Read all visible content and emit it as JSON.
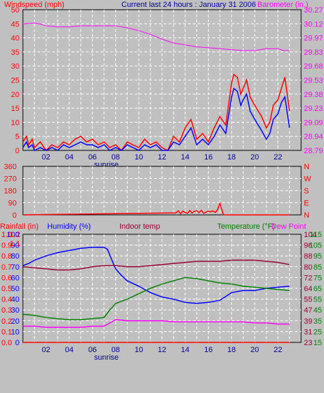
{
  "header": {
    "left_label": "Windspeed (mph)",
    "center_label": "Current last 24 hours : January 31 2006",
    "right_label": "Barometer (in.)"
  },
  "colors": {
    "bg": "#c0c0c0",
    "grid": "#ffffff",
    "red": "#ff0000",
    "darkred": "#990033",
    "blue": "#0000ff",
    "magenta": "#ff00ff",
    "green": "#008000",
    "navy": "#000099"
  },
  "chart_data": [
    {
      "id": "wind",
      "type": "line",
      "ylabel": "Windspeed (mph)",
      "y2label": "Barometer (in.)",
      "ylim": [
        0,
        50
      ],
      "y_ticks": [
        "0",
        "5",
        "10",
        "15",
        "20",
        "25",
        "30",
        "35",
        "40",
        "45",
        "50"
      ],
      "y2lim": [
        28.79,
        30.27
      ],
      "y2_ticks": [
        "28.79",
        "28.94",
        "29.09",
        "29.23",
        "29.38",
        "29.53",
        "29.68",
        "29.83",
        "29.97",
        "30.12",
        "30.27"
      ],
      "x_ticks": [
        "02",
        "04",
        "06",
        "08",
        "10",
        "12",
        "14",
        "16",
        "18",
        "20",
        "22"
      ],
      "x_annotation": "sunrise",
      "x_annotation_hour": 7.2,
      "series": [
        {
          "role": "gust",
          "color": "#ff0000",
          "x": [
            0,
            0.3,
            0.5,
            0.8,
            1,
            1.5,
            2,
            2.5,
            3,
            3.5,
            4,
            4.5,
            5,
            5.5,
            6,
            6.5,
            7,
            7.5,
            8,
            8.5,
            9,
            9.5,
            10,
            10.5,
            11,
            11.5,
            12,
            12.5,
            13,
            13.5,
            14,
            14.5,
            15,
            15.5,
            16,
            16.5,
            17,
            17.5,
            18,
            18.2,
            18.5,
            18.8,
            19,
            19.3,
            19.6,
            20,
            20.3,
            20.6,
            21,
            21.3,
            21.6,
            22,
            22.3,
            22.6,
            23
          ],
          "y": [
            3,
            5,
            2,
            4,
            1,
            3,
            0,
            2,
            1,
            3,
            2,
            4,
            5,
            3,
            4,
            2,
            3,
            1,
            2,
            0,
            3,
            2,
            1,
            4,
            2,
            3,
            1,
            0,
            5,
            3,
            8,
            11,
            4,
            6,
            3,
            8,
            12,
            9,
            24,
            27,
            26,
            20,
            22,
            25,
            19,
            16,
            14,
            12,
            8,
            10,
            16,
            18,
            22,
            26,
            14
          ]
        },
        {
          "role": "avg",
          "color": "#0000ff",
          "x": [
            0,
            0.3,
            0.5,
            0.8,
            1,
            1.5,
            2,
            2.5,
            3,
            3.5,
            4,
            4.5,
            5,
            5.5,
            6,
            6.5,
            7,
            7.5,
            8,
            8.5,
            9,
            9.5,
            10,
            10.5,
            11,
            11.5,
            12,
            12.5,
            13,
            13.5,
            14,
            14.5,
            15,
            15.5,
            16,
            16.5,
            17,
            17.5,
            18,
            18.2,
            18.5,
            18.8,
            19,
            19.3,
            19.6,
            20,
            20.3,
            20.6,
            21,
            21.3,
            21.6,
            22,
            22.3,
            22.6,
            23
          ],
          "y": [
            1,
            3,
            1,
            2,
            0,
            1,
            0,
            1,
            0,
            2,
            1,
            2,
            3,
            2,
            2,
            1,
            2,
            0,
            1,
            0,
            2,
            1,
            0,
            2,
            1,
            2,
            0,
            0,
            3,
            2,
            5,
            8,
            2,
            4,
            2,
            5,
            9,
            6,
            19,
            22,
            21,
            16,
            18,
            20,
            14,
            11,
            9,
            7,
            4,
            6,
            11,
            13,
            17,
            19,
            8
          ]
        },
        {
          "role": "barometer",
          "color": "#ff00ff",
          "axis": "y2",
          "x": [
            0,
            1,
            1.5,
            2,
            3,
            4,
            5,
            6,
            7,
            8,
            9,
            10,
            11,
            12,
            13,
            14,
            15,
            16,
            17,
            18,
            19,
            20,
            21,
            22,
            22.5,
            23
          ],
          "y": [
            30.12,
            30.13,
            30.12,
            30.1,
            30.09,
            30.09,
            30.1,
            30.1,
            30.1,
            30.1,
            30.08,
            30.05,
            30.01,
            29.96,
            29.92,
            29.9,
            29.88,
            29.87,
            29.86,
            29.85,
            29.84,
            29.84,
            29.86,
            29.86,
            29.84,
            29.84
          ]
        }
      ]
    },
    {
      "id": "direction",
      "type": "line",
      "ylim": [
        0,
        360
      ],
      "y_ticks": [
        "0",
        "90",
        "180",
        "270",
        "360"
      ],
      "y2_ticks": [
        "N",
        "E",
        "S",
        "W",
        "N"
      ],
      "x": [
        0,
        13.2,
        13.4,
        13.6,
        13.8,
        14,
        14.2,
        14.4,
        14.6,
        14.8,
        15,
        15.2,
        15.4,
        15.6,
        15.8,
        16,
        16.2,
        16.4,
        16.6,
        16.8,
        17,
        17.3,
        23
      ],
      "y": [
        0,
        15,
        30,
        10,
        28,
        18,
        12,
        32,
        14,
        26,
        30,
        16,
        34,
        12,
        20,
        28,
        22,
        30,
        18,
        40,
        85,
        0,
        0
      ]
    },
    {
      "id": "climate",
      "type": "line",
      "y_left_outer_label": "Rainfall (in)",
      "y_left_outer_ticks": [
        "0.0",
        "0.1",
        "0.2",
        "0.3",
        "0.4",
        "0.5",
        "0.6",
        "0.7",
        "0.8",
        "0.9",
        "1.0"
      ],
      "y_left_inner_label": "Humidity (%)",
      "y_left_inner_ticks": [
        "0",
        "10",
        "20",
        "30",
        "40",
        "50",
        "60",
        "70",
        "80",
        "90",
        "100"
      ],
      "y_left_extra_ticks": [
        "1.1",
        "1.2"
      ],
      "indoor_label": "Indoor temp",
      "temp_label": "Temperature (°F)",
      "dew_label": "Dew Point",
      "y_right_inner_ticks": [
        "23",
        "31",
        "39",
        "47",
        "55",
        "64",
        "72",
        "80",
        "88",
        "96",
        "104"
      ],
      "y_right_outer_ticks": [
        "15",
        "25",
        "35",
        "45",
        "55",
        "65",
        "75",
        "85",
        "95",
        "105",
        "115"
      ],
      "x_ticks": [
        "02",
        "04",
        "06",
        "08",
        "10",
        "12",
        "14",
        "16",
        "18",
        "20",
        "22"
      ],
      "x_annotation": "sunrise",
      "ylim": [
        0,
        100
      ],
      "series": [
        {
          "role": "humidity",
          "color": "#0000ff",
          "x": [
            0,
            0.5,
            1,
            2,
            3,
            4,
            5,
            6,
            7,
            7.3,
            7.6,
            8,
            8.5,
            9,
            10,
            11,
            12,
            13,
            14,
            15,
            16,
            17,
            18,
            19,
            20,
            21,
            22,
            23
          ],
          "y": [
            71,
            73,
            76,
            80,
            83,
            85,
            87,
            88,
            88,
            86,
            78,
            68,
            62,
            57,
            52,
            46,
            42,
            40,
            37,
            36,
            37,
            39,
            46,
            48,
            48,
            50,
            51,
            52
          ]
        },
        {
          "role": "indoor",
          "color": "#990033",
          "x": [
            0,
            1,
            2,
            3,
            4,
            5,
            6,
            7,
            8,
            9,
            10,
            11,
            12,
            13,
            14,
            15,
            16,
            17,
            18,
            19,
            20,
            21,
            22,
            23
          ],
          "y": [
            70,
            69,
            68,
            67,
            67,
            68,
            70,
            71,
            71,
            70,
            70,
            71,
            72,
            73,
            74,
            75,
            75,
            75,
            76,
            76,
            76,
            75,
            74,
            72
          ]
        },
        {
          "role": "temperature",
          "color": "#008000",
          "x": [
            0,
            1,
            2,
            3,
            4,
            5,
            6,
            7,
            7.5,
            8,
            9,
            10,
            11,
            12,
            13,
            14,
            15,
            16,
            17,
            18,
            19,
            20,
            21,
            22,
            23
          ],
          "y": [
            26,
            25,
            23,
            22,
            21,
            21,
            22,
            23,
            30,
            36,
            40,
            45,
            50,
            54,
            57,
            60,
            59,
            57,
            55,
            54,
            52,
            51,
            50,
            49,
            48
          ]
        },
        {
          "role": "dewpoint",
          "color": "#ff00ff",
          "x": [
            0,
            1,
            2,
            3,
            4,
            5,
            6,
            7,
            7.5,
            8,
            9,
            10,
            11,
            12,
            13,
            14,
            15,
            16,
            17,
            18,
            19,
            20,
            21,
            22,
            23
          ],
          "y": [
            15,
            15,
            14,
            14,
            14,
            14,
            15,
            15,
            18,
            21,
            20,
            20,
            20,
            20,
            19,
            19,
            19,
            19,
            19,
            19,
            19,
            18,
            18,
            17,
            17
          ]
        },
        {
          "role": "rainfall",
          "color": "#ff0000",
          "x": [
            0,
            23
          ],
          "y": [
            0,
            0
          ]
        }
      ]
    }
  ]
}
